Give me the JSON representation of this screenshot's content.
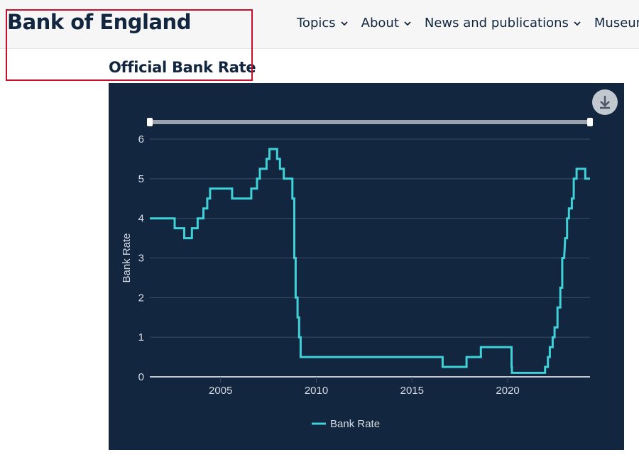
{
  "header": {
    "logo": "Bank of England",
    "nav": [
      {
        "label": "Topics"
      },
      {
        "label": "About"
      },
      {
        "label": "News and publications"
      },
      {
        "label": "Museum"
      }
    ]
  },
  "page_title": "Official Bank Rate",
  "colors": {
    "chart_bg": "#13263f",
    "series": "#3fd0d8",
    "grid": "#3a4c66",
    "axis_text": "#d6dbe3",
    "title_text": "#12273f",
    "highlight": "#c8102e"
  },
  "icons": {
    "download": "download-icon",
    "nav_chevron": "chevron-down-icon"
  },
  "chart_data": {
    "type": "line",
    "ylabel": "Bank Rate",
    "xlabel": "",
    "ylim": [
      0,
      6
    ],
    "yticks": [
      0,
      1,
      2,
      3,
      4,
      5,
      6
    ],
    "xlim": [
      2001.3,
      2024.3
    ],
    "xticks": [
      2005,
      2010,
      2015,
      2020
    ],
    "grid": true,
    "legend": "bottom",
    "series": [
      {
        "name": "Bank Rate",
        "points": [
          [
            2001.3,
            4.0
          ],
          [
            2002.6,
            4.0
          ],
          [
            2002.6,
            3.75
          ],
          [
            2003.1,
            3.75
          ],
          [
            2003.1,
            3.5
          ],
          [
            2003.5,
            3.5
          ],
          [
            2003.5,
            3.75
          ],
          [
            2003.8,
            3.75
          ],
          [
            2003.8,
            4.0
          ],
          [
            2004.1,
            4.0
          ],
          [
            2004.1,
            4.25
          ],
          [
            2004.3,
            4.25
          ],
          [
            2004.3,
            4.5
          ],
          [
            2004.45,
            4.5
          ],
          [
            2004.45,
            4.75
          ],
          [
            2005.6,
            4.75
          ],
          [
            2005.6,
            4.5
          ],
          [
            2006.6,
            4.5
          ],
          [
            2006.6,
            4.75
          ],
          [
            2006.9,
            4.75
          ],
          [
            2006.9,
            5.0
          ],
          [
            2007.05,
            5.0
          ],
          [
            2007.05,
            5.25
          ],
          [
            2007.4,
            5.25
          ],
          [
            2007.4,
            5.5
          ],
          [
            2007.55,
            5.5
          ],
          [
            2007.55,
            5.75
          ],
          [
            2007.95,
            5.75
          ],
          [
            2007.95,
            5.5
          ],
          [
            2008.1,
            5.5
          ],
          [
            2008.1,
            5.25
          ],
          [
            2008.3,
            5.25
          ],
          [
            2008.3,
            5.0
          ],
          [
            2008.75,
            5.0
          ],
          [
            2008.75,
            4.5
          ],
          [
            2008.85,
            4.5
          ],
          [
            2008.85,
            3.0
          ],
          [
            2008.92,
            3.0
          ],
          [
            2008.92,
            2.0
          ],
          [
            2009.02,
            2.0
          ],
          [
            2009.02,
            1.5
          ],
          [
            2009.1,
            1.5
          ],
          [
            2009.1,
            1.0
          ],
          [
            2009.18,
            1.0
          ],
          [
            2009.18,
            0.5
          ],
          [
            2016.6,
            0.5
          ],
          [
            2016.6,
            0.25
          ],
          [
            2017.85,
            0.25
          ],
          [
            2017.85,
            0.5
          ],
          [
            2018.6,
            0.5
          ],
          [
            2018.6,
            0.75
          ],
          [
            2020.2,
            0.75
          ],
          [
            2020.2,
            0.25
          ],
          [
            2020.22,
            0.25
          ],
          [
            2020.22,
            0.1
          ],
          [
            2021.95,
            0.1
          ],
          [
            2021.95,
            0.25
          ],
          [
            2022.1,
            0.25
          ],
          [
            2022.1,
            0.5
          ],
          [
            2022.2,
            0.5
          ],
          [
            2022.2,
            0.75
          ],
          [
            2022.35,
            0.75
          ],
          [
            2022.35,
            1.0
          ],
          [
            2022.45,
            1.0
          ],
          [
            2022.45,
            1.25
          ],
          [
            2022.6,
            1.25
          ],
          [
            2022.6,
            1.75
          ],
          [
            2022.75,
            1.75
          ],
          [
            2022.75,
            2.25
          ],
          [
            2022.85,
            2.25
          ],
          [
            2022.85,
            3.0
          ],
          [
            2022.95,
            3.0
          ],
          [
            2023.0,
            3.5
          ],
          [
            2023.1,
            3.5
          ],
          [
            2023.1,
            4.0
          ],
          [
            2023.2,
            4.0
          ],
          [
            2023.2,
            4.25
          ],
          [
            2023.35,
            4.25
          ],
          [
            2023.35,
            4.5
          ],
          [
            2023.45,
            4.5
          ],
          [
            2023.45,
            5.0
          ],
          [
            2023.6,
            5.0
          ],
          [
            2023.6,
            5.25
          ],
          [
            2024.05,
            5.25
          ],
          [
            2024.05,
            5.0
          ],
          [
            2024.3,
            5.0
          ]
        ]
      }
    ]
  }
}
